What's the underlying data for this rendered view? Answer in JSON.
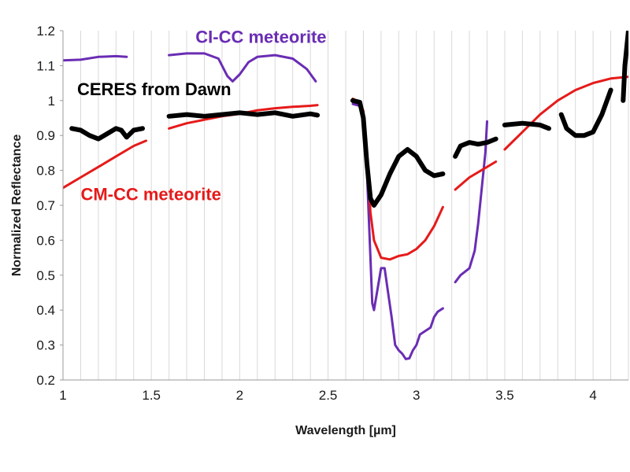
{
  "chart_data": {
    "type": "line",
    "title": "",
    "xlabel": "Wavelength [µm]",
    "ylabel": "Normalized  Reflectance",
    "xlim": [
      1,
      4.2
    ],
    "ylim": [
      0.2,
      1.2
    ],
    "xticks": [
      1,
      1.5,
      2,
      2.5,
      3,
      3.5,
      4
    ],
    "xtick_labels": [
      "1",
      "1.5",
      "2",
      "2.5",
      "3",
      "3.5",
      "4"
    ],
    "yticks": [
      0.2,
      0.3,
      0.4,
      0.5,
      0.6,
      0.7,
      0.8,
      0.9,
      1.0,
      1.1,
      1.2
    ],
    "ytick_labels": [
      "0.2",
      "0.3",
      "0.4",
      "0.5",
      "0.6",
      "0.7",
      "0.8",
      "0.9",
      "1",
      "1.1",
      "1.2"
    ],
    "grid": {
      "vertical": true,
      "horizontal": false
    },
    "legend": "none (series labelled directly on plot)",
    "series": [
      {
        "name": "CI-CC meteorite",
        "color": "#6a2db4",
        "stroke": 3,
        "segments": [
          [
            [
              1.0,
              1.115
            ],
            [
              1.1,
              1.117
            ],
            [
              1.2,
              1.125
            ],
            [
              1.3,
              1.127
            ],
            [
              1.36,
              1.125
            ]
          ],
          [
            [
              1.6,
              1.13
            ],
            [
              1.7,
              1.135
            ],
            [
              1.8,
              1.135
            ],
            [
              1.88,
              1.12
            ],
            [
              1.93,
              1.07
            ],
            [
              1.96,
              1.055
            ],
            [
              2.0,
              1.075
            ],
            [
              2.05,
              1.11
            ],
            [
              2.1,
              1.125
            ],
            [
              2.2,
              1.13
            ],
            [
              2.3,
              1.12
            ],
            [
              2.38,
              1.09
            ],
            [
              2.43,
              1.055
            ]
          ],
          [
            [
              2.64,
              0.99
            ],
            [
              2.68,
              0.985
            ],
            [
              2.7,
              0.96
            ],
            [
              2.72,
              0.8
            ],
            [
              2.74,
              0.55
            ],
            [
              2.75,
              0.42
            ],
            [
              2.76,
              0.4
            ],
            [
              2.78,
              0.46
            ],
            [
              2.8,
              0.52
            ],
            [
              2.82,
              0.52
            ],
            [
              2.84,
              0.45
            ],
            [
              2.86,
              0.38
            ],
            [
              2.88,
              0.3
            ],
            [
              2.9,
              0.285
            ],
            [
              2.92,
              0.275
            ],
            [
              2.94,
              0.26
            ],
            [
              2.96,
              0.262
            ],
            [
              2.98,
              0.285
            ],
            [
              3.0,
              0.3
            ],
            [
              3.02,
              0.33
            ],
            [
              3.05,
              0.34
            ],
            [
              3.08,
              0.35
            ],
            [
              3.1,
              0.38
            ],
            [
              3.12,
              0.395
            ],
            [
              3.15,
              0.405
            ]
          ],
          [
            [
              3.22,
              0.48
            ],
            [
              3.25,
              0.5
            ],
            [
              3.3,
              0.52
            ],
            [
              3.33,
              0.57
            ],
            [
              3.35,
              0.65
            ],
            [
              3.37,
              0.75
            ],
            [
              3.39,
              0.85
            ],
            [
              3.4,
              0.94
            ]
          ]
        ]
      },
      {
        "name": "CERES from Dawn",
        "color": "#000000",
        "stroke": 6,
        "segments": [
          [
            [
              1.05,
              0.92
            ],
            [
              1.1,
              0.915
            ],
            [
              1.15,
              0.9
            ],
            [
              1.2,
              0.89
            ],
            [
              1.25,
              0.905
            ],
            [
              1.3,
              0.92
            ],
            [
              1.33,
              0.915
            ],
            [
              1.36,
              0.895
            ],
            [
              1.4,
              0.915
            ],
            [
              1.45,
              0.92
            ]
          ],
          [
            [
              1.6,
              0.955
            ],
            [
              1.7,
              0.96
            ],
            [
              1.8,
              0.955
            ],
            [
              1.9,
              0.96
            ],
            [
              2.0,
              0.965
            ],
            [
              2.1,
              0.96
            ],
            [
              2.2,
              0.965
            ],
            [
              2.3,
              0.955
            ],
            [
              2.4,
              0.962
            ],
            [
              2.44,
              0.958
            ]
          ],
          [
            [
              2.64,
              1.0
            ],
            [
              2.68,
              0.995
            ],
            [
              2.7,
              0.95
            ],
            [
              2.72,
              0.82
            ],
            [
              2.74,
              0.72
            ],
            [
              2.76,
              0.7
            ],
            [
              2.8,
              0.73
            ],
            [
              2.85,
              0.79
            ],
            [
              2.9,
              0.84
            ],
            [
              2.95,
              0.86
            ],
            [
              3.0,
              0.84
            ],
            [
              3.05,
              0.8
            ],
            [
              3.1,
              0.785
            ],
            [
              3.15,
              0.79
            ]
          ],
          [
            [
              3.22,
              0.84
            ],
            [
              3.25,
              0.87
            ],
            [
              3.3,
              0.88
            ],
            [
              3.35,
              0.875
            ],
            [
              3.4,
              0.88
            ],
            [
              3.45,
              0.89
            ]
          ],
          [
            [
              3.5,
              0.93
            ],
            [
              3.6,
              0.935
            ],
            [
              3.7,
              0.93
            ],
            [
              3.75,
              0.92
            ]
          ],
          [
            [
              3.82,
              0.96
            ],
            [
              3.85,
              0.92
            ],
            [
              3.9,
              0.9
            ],
            [
              3.95,
              0.9
            ],
            [
              4.0,
              0.91
            ],
            [
              4.05,
              0.96
            ],
            [
              4.1,
              1.03
            ]
          ],
          [
            [
              4.17,
              1.0
            ],
            [
              4.18,
              1.1
            ],
            [
              4.2,
              1.2
            ]
          ]
        ]
      },
      {
        "name": "CM-CC meteorite",
        "color": "#e61a1a",
        "stroke": 3,
        "segments": [
          [
            [
              1.0,
              0.75
            ],
            [
              1.1,
              0.78
            ],
            [
              1.2,
              0.81
            ],
            [
              1.3,
              0.84
            ],
            [
              1.4,
              0.87
            ],
            [
              1.47,
              0.885
            ]
          ],
          [
            [
              1.6,
              0.92
            ],
            [
              1.7,
              0.935
            ],
            [
              1.8,
              0.945
            ],
            [
              1.9,
              0.955
            ],
            [
              2.0,
              0.962
            ],
            [
              2.1,
              0.972
            ],
            [
              2.2,
              0.978
            ],
            [
              2.3,
              0.982
            ],
            [
              2.4,
              0.985
            ],
            [
              2.44,
              0.987
            ]
          ],
          [
            [
              2.64,
              1.005
            ],
            [
              2.68,
              0.995
            ],
            [
              2.7,
              0.97
            ],
            [
              2.72,
              0.85
            ],
            [
              2.74,
              0.68
            ],
            [
              2.76,
              0.6
            ],
            [
              2.8,
              0.55
            ],
            [
              2.85,
              0.545
            ],
            [
              2.9,
              0.555
            ],
            [
              2.95,
              0.56
            ],
            [
              3.0,
              0.575
            ],
            [
              3.05,
              0.6
            ],
            [
              3.1,
              0.64
            ],
            [
              3.15,
              0.695
            ]
          ],
          [
            [
              3.22,
              0.745
            ],
            [
              3.3,
              0.78
            ],
            [
              3.4,
              0.81
            ],
            [
              3.45,
              0.825
            ]
          ],
          [
            [
              3.5,
              0.86
            ],
            [
              3.6,
              0.91
            ],
            [
              3.7,
              0.96
            ],
            [
              3.8,
              1.0
            ],
            [
              3.9,
              1.03
            ],
            [
              4.0,
              1.05
            ],
            [
              4.1,
              1.063
            ],
            [
              4.2,
              1.068
            ]
          ]
        ]
      }
    ],
    "annotations": [
      {
        "text": "CI-CC meteorite",
        "color": "#6a2db4",
        "anchor_x": 1.75,
        "anchor_y": 1.165
      },
      {
        "text": "CERES from Dawn",
        "color": "#000000",
        "anchor_x": 1.08,
        "anchor_y": 1.015
      },
      {
        "text": "CM-CC meteorite",
        "color": "#e61a1a",
        "anchor_x": 1.1,
        "anchor_y": 0.715
      }
    ]
  }
}
